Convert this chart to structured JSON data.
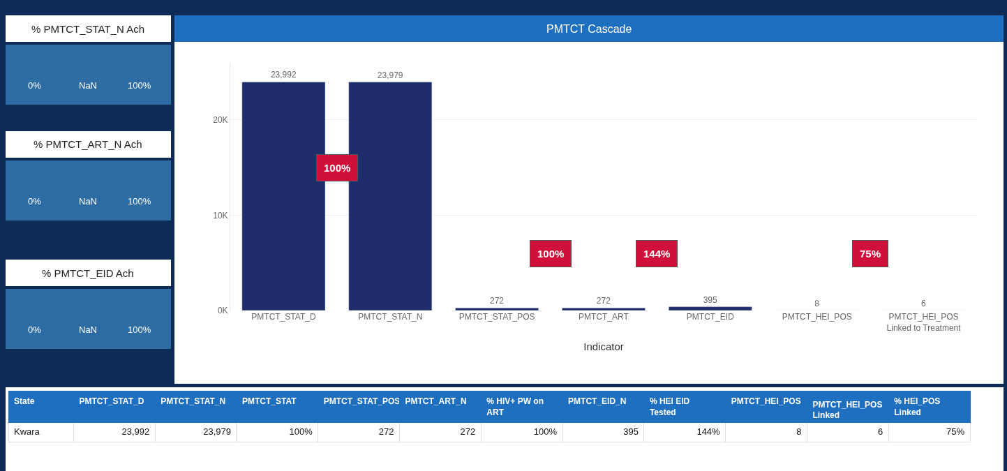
{
  "chart_data": [
    {
      "type": "other",
      "title": "% PMTCT_STAT_N Ach",
      "annotations": [
        "0%",
        "NaN",
        "100%"
      ]
    },
    {
      "type": "other",
      "title": "% PMTCT_ART_N Ach",
      "annotations": [
        "0%",
        "NaN",
        "100%"
      ]
    },
    {
      "type": "other",
      "title": "% PMTCT_EID Ach",
      "annotations": [
        "0%",
        "NaN",
        "100%"
      ]
    },
    {
      "type": "bar",
      "title": "PMTCT Cascade",
      "xlabel": "Indicator",
      "categories": [
        "PMTCT_STAT_D",
        "PMTCT_STAT_N",
        "PMTCT_STAT_POS",
        "PMTCT_ART",
        "PMTCT_EID",
        "PMTCT_HEI_POS",
        "PMTCT_HEI_POS Linked to Treatment"
      ],
      "values": [
        23992,
        23979,
        272,
        272,
        395,
        8,
        6
      ],
      "color": "#1f2d6b",
      "value_labels": [
        "23,992",
        "23,979",
        "272",
        "272",
        "395",
        "8",
        "6"
      ],
      "ylim": [
        0,
        26000
      ],
      "yticks": [
        {
          "value": 0,
          "label": "0K"
        },
        {
          "value": 10000,
          "label": "10K"
        },
        {
          "value": 20000,
          "label": "20K"
        }
      ],
      "grid": "y",
      "annotations": [
        "100%",
        "100%",
        "144%",
        "75%"
      ]
    },
    {
      "type": "other",
      "annotations": [
        "State",
        "PMTCT_STAT_D",
        "PMTCT_STAT_N",
        "PMTCT_STAT",
        "PMTCT_STAT_POS",
        "PMTCT_ART_N",
        "% HIV+ PW on ART",
        "PMTCT_EID_N",
        "% HEI EID Tested",
        "PMTCT_HEI_POS",
        "PMTCT_HEI_POS Linked",
        "% HEI_POS Linked",
        "Kwara",
        "23,992",
        "23,979",
        "100%",
        "272",
        "272",
        "100%",
        "395",
        "144%",
        "8",
        "6",
        "75%"
      ]
    }
  ]
}
